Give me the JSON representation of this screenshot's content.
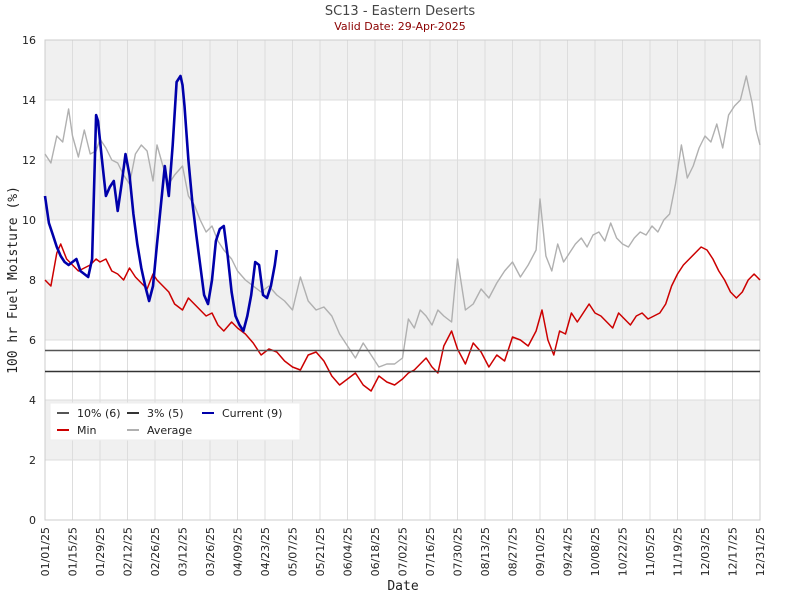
{
  "chart_data": {
    "type": "line",
    "title": "SC13 - Eastern Deserts",
    "subtitle": "Valid Date: 29-Apr-2025",
    "xlabel": "Date",
    "ylabel": "100 hr Fuel Moisture (%)",
    "ylim": [
      0,
      16
    ],
    "yticks": [
      0,
      2,
      4,
      6,
      8,
      10,
      12,
      14,
      16
    ],
    "xlim": [
      "01/01",
      "12/31"
    ],
    "xticks": [
      "01/01/25",
      "01/15/25",
      "01/29/25",
      "02/12/25",
      "02/26/25",
      "03/12/25",
      "03/26/25",
      "04/09/25",
      "04/23/25",
      "05/07/25",
      "05/21/25",
      "06/04/25",
      "06/18/25",
      "07/02/25",
      "07/16/25",
      "07/30/25",
      "08/13/25",
      "08/27/25",
      "09/10/25",
      "09/24/25",
      "10/08/25",
      "10/22/25",
      "11/05/25",
      "11/19/25",
      "12/03/25",
      "12/17/25",
      "12/31/25"
    ],
    "grid": true,
    "legend": "bottom-left",
    "colors": {
      "pct10": "#555555",
      "pct3": "#333333",
      "min": "#cc0000",
      "average": "#b0b0b0",
      "current": "#0000aa"
    },
    "legend_entries": [
      {
        "key": "pct10",
        "label": "10% (6)"
      },
      {
        "key": "pct3",
        "label": "3% (5)"
      },
      {
        "key": "current",
        "label": "Current (9)"
      },
      {
        "key": "min",
        "label": "Min"
      },
      {
        "key": "average",
        "label": "Average"
      }
    ],
    "thresholds": {
      "pct10": 5.65,
      "pct3": 4.95
    },
    "series": [
      {
        "key": "average",
        "x": [
          "01/01",
          "01/04",
          "01/07",
          "01/10",
          "01/13",
          "01/15",
          "01/18",
          "01/21",
          "01/24",
          "01/27",
          "01/29",
          "02/01",
          "02/04",
          "02/07",
          "02/10",
          "02/13",
          "02/16",
          "02/19",
          "02/22",
          "02/25",
          "02/27",
          "03/02",
          "03/05",
          "03/08",
          "03/12",
          "03/15",
          "03/18",
          "03/21",
          "03/24",
          "03/27",
          "03/30",
          "04/02",
          "04/06",
          "04/09",
          "04/13",
          "04/17",
          "04/21",
          "04/25",
          "04/29",
          "05/03",
          "05/07",
          "05/11",
          "05/15",
          "05/19",
          "05/23",
          "05/27",
          "05/31",
          "06/04",
          "06/08",
          "06/12",
          "06/16",
          "06/20",
          "06/24",
          "06/28",
          "07/02",
          "07/05",
          "07/08",
          "07/11",
          "07/14",
          "07/17",
          "07/20",
          "07/23",
          "07/27",
          "07/30",
          "08/03",
          "08/07",
          "08/11",
          "08/15",
          "08/19",
          "08/23",
          "08/27",
          "08/31",
          "09/04",
          "09/08",
          "09/10",
          "09/13",
          "09/16",
          "09/19",
          "09/22",
          "09/25",
          "09/28",
          "10/01",
          "10/04",
          "10/07",
          "10/10",
          "10/13",
          "10/16",
          "10/19",
          "10/22",
          "10/25",
          "10/28",
          "10/31",
          "11/03",
          "11/06",
          "11/09",
          "11/12",
          "11/15",
          "11/18",
          "11/21",
          "11/24",
          "11/27",
          "11/30",
          "12/03",
          "12/06",
          "12/09",
          "12/12",
          "12/15",
          "12/18",
          "12/21",
          "12/24",
          "12/27",
          "12/29",
          "12/31"
        ],
        "y": [
          12.2,
          11.9,
          12.8,
          12.6,
          13.7,
          12.8,
          12.1,
          13.0,
          12.2,
          12.3,
          12.7,
          12.4,
          12.0,
          11.9,
          11.5,
          11.2,
          12.2,
          12.5,
          12.3,
          11.3,
          12.5,
          11.8,
          11.2,
          11.5,
          11.8,
          10.8,
          10.5,
          10.0,
          9.6,
          9.8,
          9.3,
          9.0,
          8.7,
          8.3,
          8.0,
          7.8,
          7.6,
          7.8,
          7.5,
          7.3,
          7.0,
          8.1,
          7.3,
          7.0,
          7.1,
          6.8,
          6.2,
          5.8,
          5.4,
          5.9,
          5.5,
          5.1,
          5.2,
          5.2,
          5.4,
          6.7,
          6.4,
          7.0,
          6.8,
          6.5,
          7.0,
          6.8,
          6.6,
          8.7,
          7.0,
          7.2,
          7.7,
          7.4,
          7.9,
          8.3,
          8.6,
          8.1,
          8.5,
          9.0,
          10.7,
          8.8,
          8.3,
          9.2,
          8.6,
          8.9,
          9.2,
          9.4,
          9.1,
          9.5,
          9.6,
          9.3,
          9.9,
          9.4,
          9.2,
          9.1,
          9.4,
          9.6,
          9.5,
          9.8,
          9.6,
          10.0,
          10.2,
          11.2,
          12.5,
          11.4,
          11.8,
          12.4,
          12.8,
          12.6,
          13.2,
          12.4,
          13.5,
          13.8,
          14.0,
          14.8,
          13.9,
          13.0,
          12.5
        ]
      },
      {
        "key": "min",
        "x": [
          "01/01",
          "01/04",
          "01/07",
          "01/09",
          "01/12",
          "01/15",
          "01/18",
          "01/21",
          "01/24",
          "01/27",
          "01/29",
          "02/01",
          "02/04",
          "02/07",
          "02/10",
          "02/13",
          "02/16",
          "02/19",
          "02/22",
          "02/25",
          "02/27",
          "03/02",
          "03/05",
          "03/08",
          "03/12",
          "03/15",
          "03/18",
          "03/21",
          "03/24",
          "03/27",
          "03/30",
          "04/02",
          "04/06",
          "04/09",
          "04/13",
          "04/17",
          "04/21",
          "04/25",
          "04/29",
          "05/03",
          "05/07",
          "05/11",
          "05/15",
          "05/19",
          "05/23",
          "05/27",
          "05/31",
          "06/04",
          "06/08",
          "06/12",
          "06/16",
          "06/20",
          "06/24",
          "06/28",
          "07/02",
          "07/05",
          "07/08",
          "07/11",
          "07/14",
          "07/17",
          "07/20",
          "07/23",
          "07/27",
          "07/30",
          "08/03",
          "08/07",
          "08/11",
          "08/15",
          "08/19",
          "08/23",
          "08/27",
          "08/31",
          "09/04",
          "09/08",
          "09/11",
          "09/14",
          "09/17",
          "09/20",
          "09/23",
          "09/26",
          "09/29",
          "10/02",
          "10/05",
          "10/08",
          "10/11",
          "10/14",
          "10/17",
          "10/20",
          "10/23",
          "10/26",
          "10/29",
          "11/01",
          "11/04",
          "11/07",
          "11/10",
          "11/13",
          "11/16",
          "11/19",
          "11/22",
          "11/25",
          "11/28",
          "12/01",
          "12/04",
          "12/07",
          "12/10",
          "12/13",
          "12/16",
          "12/19",
          "12/22",
          "12/25",
          "12/28",
          "12/31"
        ],
        "y": [
          8.0,
          7.8,
          8.9,
          9.2,
          8.7,
          8.5,
          8.3,
          8.4,
          8.5,
          8.7,
          8.6,
          8.7,
          8.3,
          8.2,
          8.0,
          8.4,
          8.1,
          7.9,
          7.7,
          8.2,
          8.0,
          7.8,
          7.6,
          7.2,
          7.0,
          7.4,
          7.2,
          7.0,
          6.8,
          6.9,
          6.5,
          6.3,
          6.6,
          6.4,
          6.2,
          5.9,
          5.5,
          5.7,
          5.6,
          5.3,
          5.1,
          5.0,
          5.5,
          5.6,
          5.3,
          4.8,
          4.5,
          4.7,
          4.9,
          4.5,
          4.3,
          4.8,
          4.6,
          4.5,
          4.7,
          4.9,
          5.0,
          5.2,
          5.4,
          5.1,
          4.9,
          5.8,
          6.3,
          5.7,
          5.2,
          5.9,
          5.6,
          5.1,
          5.5,
          5.3,
          6.1,
          6.0,
          5.8,
          6.3,
          7.0,
          6.0,
          5.5,
          6.3,
          6.2,
          6.9,
          6.6,
          6.9,
          7.2,
          6.9,
          6.8,
          6.6,
          6.4,
          6.9,
          6.7,
          6.5,
          6.8,
          6.9,
          6.7,
          6.8,
          6.9,
          7.2,
          7.8,
          8.2,
          8.5,
          8.7,
          8.9,
          9.1,
          9.0,
          8.7,
          8.3,
          8.0,
          7.6,
          7.4,
          7.6,
          8.0,
          8.2,
          8.0
        ]
      },
      {
        "key": "current",
        "x": [
          "01/01",
          "01/03",
          "01/05",
          "01/07",
          "01/09",
          "01/11",
          "01/13",
          "01/15",
          "01/17",
          "01/19",
          "01/21",
          "01/23",
          "01/25",
          "01/27",
          "01/28",
          "01/30",
          "02/01",
          "02/03",
          "02/05",
          "02/07",
          "02/09",
          "02/11",
          "02/13",
          "02/15",
          "02/17",
          "02/19",
          "02/21",
          "02/23",
          "02/25",
          "02/27",
          "03/01",
          "03/03",
          "03/05",
          "03/07",
          "03/09",
          "03/11",
          "03/12",
          "03/13",
          "03/15",
          "03/17",
          "03/19",
          "03/21",
          "03/23",
          "03/25",
          "03/27",
          "03/29",
          "03/31",
          "04/02",
          "04/04",
          "04/06",
          "04/08",
          "04/10",
          "04/12",
          "04/14",
          "04/16",
          "04/18",
          "04/20",
          "04/22",
          "04/24",
          "04/26",
          "04/28",
          "04/29"
        ],
        "y": [
          10.8,
          9.9,
          9.5,
          9.1,
          8.8,
          8.6,
          8.5,
          8.6,
          8.7,
          8.3,
          8.2,
          8.1,
          8.7,
          13.5,
          13.3,
          12.0,
          10.8,
          11.1,
          11.3,
          10.3,
          11.2,
          12.2,
          11.5,
          10.2,
          9.2,
          8.4,
          7.8,
          7.3,
          7.8,
          9.2,
          10.5,
          11.8,
          10.8,
          12.5,
          14.6,
          14.8,
          14.5,
          13.8,
          12.0,
          10.6,
          9.5,
          8.5,
          7.5,
          7.2,
          8.0,
          9.3,
          9.7,
          9.8,
          8.8,
          7.6,
          6.8,
          6.5,
          6.3,
          6.8,
          7.5,
          8.6,
          8.5,
          7.5,
          7.4,
          7.8,
          8.5,
          9.0
        ]
      }
    ]
  }
}
